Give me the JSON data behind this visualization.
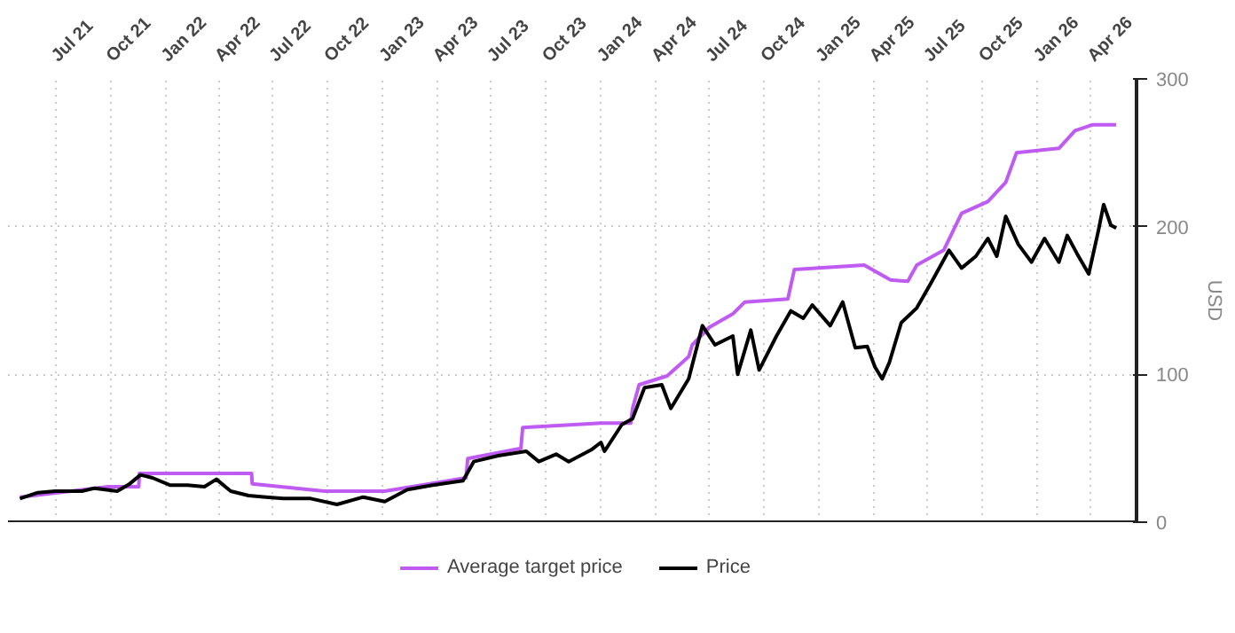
{
  "chart_data": {
    "type": "line",
    "ylabel": "USD",
    "legend": "bottom",
    "grid": true,
    "line_style": "solid",
    "marker": "none",
    "xlim": [
      "2021-04-13",
      "2026-06-16"
    ],
    "xticks": [
      {
        "value": "2021-07-01",
        "label": "Jul 21"
      },
      {
        "value": "2021-10-01",
        "label": "Oct 21"
      },
      {
        "value": "2022-01-01",
        "label": "Jan 22"
      },
      {
        "value": "2022-04-01",
        "label": "Apr 22"
      },
      {
        "value": "2022-07-01",
        "label": "Jul 22"
      },
      {
        "value": "2022-10-01",
        "label": "Oct 22"
      },
      {
        "value": "2023-01-01",
        "label": "Jan 23"
      },
      {
        "value": "2023-04-01",
        "label": "Apr 23"
      },
      {
        "value": "2023-07-01",
        "label": "Jul 23"
      },
      {
        "value": "2023-10-01",
        "label": "Oct 23"
      },
      {
        "value": "2024-01-01",
        "label": "Jan 24"
      },
      {
        "value": "2024-04-01",
        "label": "Apr 24"
      },
      {
        "value": "2024-07-01",
        "label": "Jul 24"
      },
      {
        "value": "2024-10-01",
        "label": "Oct 24"
      },
      {
        "value": "2025-01-01",
        "label": "Jan 25"
      },
      {
        "value": "2025-04-01",
        "label": "Apr 25"
      },
      {
        "value": "2025-07-01",
        "label": "Jul 25"
      },
      {
        "value": "2025-10-01",
        "label": "Oct 25"
      },
      {
        "value": "2026-01-01",
        "label": "Jan 26"
      },
      {
        "value": "2026-04-01",
        "label": "Apr 26"
      }
    ],
    "ylim": [
      0,
      300
    ],
    "yticks": [
      0,
      100,
      200,
      300
    ],
    "series": [
      {
        "name": "Average target price",
        "color": "#bf5af2",
        "x": [
          "2021-05-03",
          "2021-09-28",
          "2021-11-18",
          "2021-11-19",
          "2022-05-26",
          "2022-05-27",
          "2022-09-25",
          "2023-01-04",
          "2023-05-20",
          "2023-05-23",
          "2023-08-20",
          "2023-08-23",
          "2024-01-01",
          "2024-02-20",
          "2024-02-23",
          "2024-03-05",
          "2024-04-21",
          "2024-05-27",
          "2024-06-02",
          "2024-07-01",
          "2024-08-09",
          "2024-08-29",
          "2024-11-09",
          "2024-11-20",
          "2025-03-17",
          "2025-04-30",
          "2025-05-29",
          "2025-06-13",
          "2025-07-28",
          "2025-08-27",
          "2025-10-10",
          "2025-11-09",
          "2025-11-27",
          "2026-02-06",
          "2026-03-05",
          "2026-04-04",
          "2026-05-13"
        ],
        "values": [
          17,
          24,
          24,
          33,
          33,
          26,
          21,
          21,
          30,
          43,
          50,
          64,
          67,
          67,
          77,
          93,
          99,
          112,
          120,
          132,
          141,
          149,
          151,
          171,
          174,
          164,
          163,
          174,
          184,
          209,
          217,
          230,
          250,
          253,
          265,
          269,
          269
        ]
      },
      {
        "name": "Price",
        "color": "#000000",
        "x": [
          "2021-05-03",
          "2021-06-02",
          "2021-07-01",
          "2021-08-15",
          "2021-09-05",
          "2021-10-13",
          "2021-11-03",
          "2021-11-21",
          "2021-12-11",
          "2022-01-10",
          "2022-02-08",
          "2022-03-08",
          "2022-03-28",
          "2022-04-21",
          "2022-05-21",
          "2022-06-19",
          "2022-07-18",
          "2022-09-02",
          "2022-10-16",
          "2022-11-29",
          "2023-01-04",
          "2023-02-11",
          "2023-03-25",
          "2023-05-15",
          "2023-06-02",
          "2023-07-13",
          "2023-08-29",
          "2023-09-19",
          "2023-10-18",
          "2023-11-08",
          "2023-12-16",
          "2024-01-01",
          "2024-01-07",
          "2024-02-05",
          "2024-02-23",
          "2024-03-14",
          "2024-04-12",
          "2024-04-27",
          "2024-05-27",
          "2024-06-19",
          "2024-07-10",
          "2024-08-09",
          "2024-08-17",
          "2024-09-08",
          "2024-09-22",
          "2024-10-21",
          "2024-11-14",
          "2024-12-05",
          "2024-12-20",
          "2025-01-19",
          "2025-02-09",
          "2025-03-02",
          "2025-03-22",
          "2025-04-04",
          "2025-04-16",
          "2025-04-28",
          "2025-05-18",
          "2025-06-13",
          "2025-07-07",
          "2025-08-06",
          "2025-08-27",
          "2025-09-20",
          "2025-10-10",
          "2025-10-25",
          "2025-11-09",
          "2025-11-30",
          "2025-12-22",
          "2026-01-13",
          "2026-02-06",
          "2026-02-20",
          "2026-03-08",
          "2026-03-28",
          "2026-04-13",
          "2026-04-22",
          "2026-05-04",
          "2026-05-13"
        ],
        "values": [
          16,
          20,
          21,
          21,
          23,
          21,
          26,
          32,
          30,
          25,
          25,
          24,
          29,
          21,
          18,
          17,
          16,
          16,
          12,
          17,
          14,
          22,
          25,
          28,
          41,
          45,
          48,
          41,
          46,
          41,
          49,
          54,
          48,
          66,
          70,
          91,
          93,
          77,
          97,
          133,
          120,
          126,
          100,
          130,
          103,
          126,
          143,
          138,
          147,
          133,
          149,
          118,
          119,
          105,
          97,
          108,
          135,
          145,
          162,
          184,
          172,
          180,
          192,
          180,
          207,
          188,
          176,
          192,
          176,
          194,
          182,
          168,
          197,
          215,
          201,
          199
        ]
      }
    ]
  }
}
